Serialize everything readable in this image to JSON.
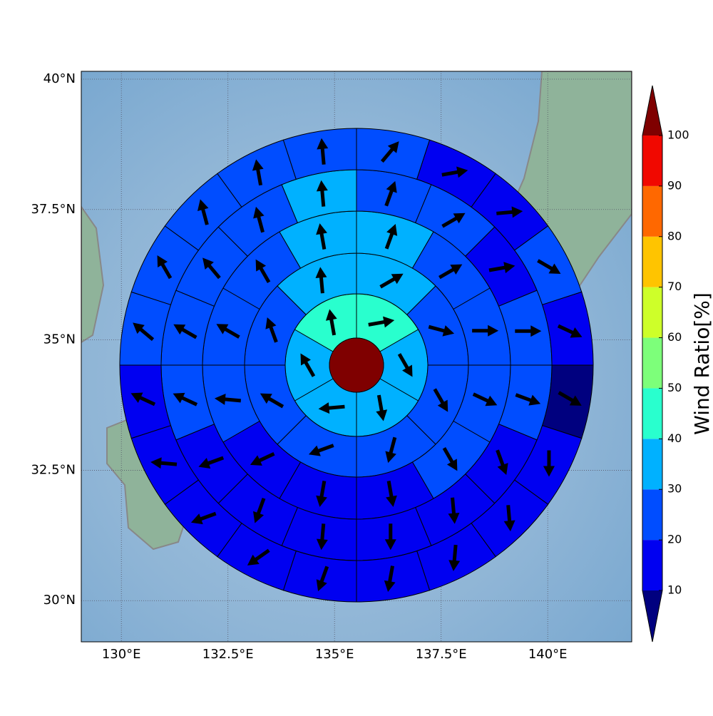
{
  "chart_data": {
    "type": "polar-sector-map",
    "xlim": [
      129.06,
      141.97
    ],
    "ylim": [
      29.21,
      40.15
    ],
    "xticks": [
      {
        "value": 130,
        "label": "130°E"
      },
      {
        "value": 132.5,
        "label": "132.5°E"
      },
      {
        "value": 135,
        "label": "135°E"
      },
      {
        "value": 137.5,
        "label": "137.5°E"
      },
      {
        "value": 140,
        "label": "140°E"
      }
    ],
    "yticks": [
      {
        "value": 30,
        "label": "30°N"
      },
      {
        "value": 32.5,
        "label": "32.5°N"
      },
      {
        "value": 35,
        "label": "35°N"
      },
      {
        "value": 37.5,
        "label": "37.5°N"
      },
      {
        "value": 40,
        "label": "40°N"
      }
    ],
    "grid": true,
    "center_value": 105,
    "rings": [
      {
        "values": [
          45,
          35,
          35,
          35,
          35,
          45
        ],
        "directions": [
          80,
          150,
          170,
          265,
          330,
          350
        ]
      },
      {
        "values": [
          35,
          25,
          25,
          25,
          25,
          25,
          25,
          35
        ],
        "directions": [
          60,
          105,
          150,
          195,
          250,
          300,
          340,
          355
        ]
      },
      {
        "values": [
          35,
          25,
          25,
          25,
          22,
          18,
          18,
          18,
          22,
          25,
          25,
          35
        ],
        "directions": [
          20,
          60,
          90,
          115,
          150,
          170,
          190,
          245,
          275,
          300,
          330,
          350
        ]
      },
      {
        "values": [
          25,
          25,
          15,
          25,
          25,
          18,
          15,
          15,
          15,
          15,
          15,
          25,
          25,
          25,
          25,
          35
        ],
        "directions": [
          20,
          60,
          80,
          90,
          110,
          160,
          175,
          180,
          185,
          200,
          250,
          295,
          300,
          320,
          345,
          355
        ]
      },
      {
        "values": [
          25,
          15,
          15,
          25,
          15,
          5,
          15,
          15,
          15,
          15,
          15,
          15,
          15,
          15,
          15,
          25,
          25,
          25,
          25,
          25
        ],
        "directions": [
          40,
          80,
          85,
          120,
          115,
          120,
          180,
          175,
          185,
          190,
          200,
          235,
          250,
          275,
          295,
          310,
          330,
          345,
          350,
          355
        ]
      }
    ],
    "colorbar": {
      "label": "Wind Ratio[%]",
      "levels": [
        10,
        20,
        30,
        40,
        50,
        60,
        70,
        80,
        90,
        100
      ],
      "colors": [
        "#0000f1",
        "#004dff",
        "#00b1ff",
        "#29ffce",
        "#7dff7a",
        "#ceff29",
        "#ffc400",
        "#ff6800",
        "#f10800"
      ],
      "under_color": "#00007f",
      "over_color": "#7f0000"
    }
  }
}
